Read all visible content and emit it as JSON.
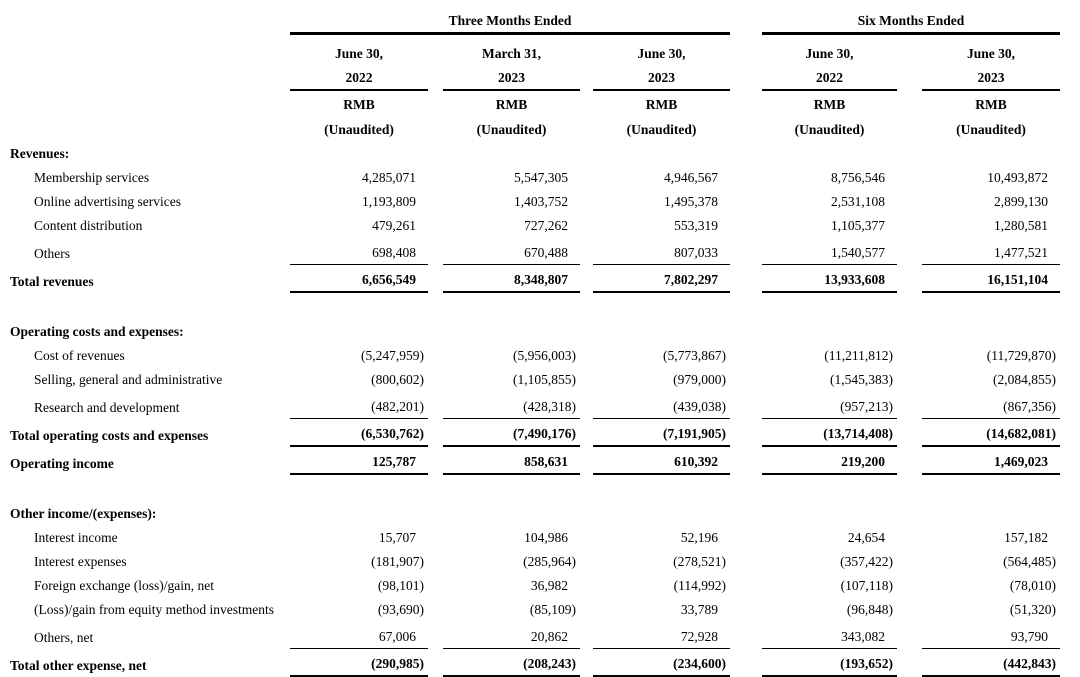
{
  "table": {
    "group_headers": [
      {
        "label": "Three Months Ended",
        "span": 3
      },
      {
        "label": "Six Months Ended",
        "span": 2
      }
    ],
    "columns": [
      {
        "date": "June 30,",
        "year": "2022",
        "unit": "RMB",
        "note": "(Unaudited)"
      },
      {
        "date": "March 31,",
        "year": "2023",
        "unit": "RMB",
        "note": "(Unaudited)"
      },
      {
        "date": "June 30,",
        "year": "2023",
        "unit": "RMB",
        "note": "(Unaudited)"
      },
      {
        "date": "June 30,",
        "year": "2022",
        "unit": "RMB",
        "note": "(Unaudited)"
      },
      {
        "date": "June 30,",
        "year": "2023",
        "unit": "RMB",
        "note": "(Unaudited)"
      }
    ],
    "rows": [
      {
        "type": "section",
        "label": "Revenues:"
      },
      {
        "type": "item",
        "label": "Membership services",
        "values": [
          "4,285,071",
          "5,547,305",
          "4,946,567",
          "8,756,546",
          "10,493,872"
        ]
      },
      {
        "type": "item",
        "label": "Online advertising services",
        "values": [
          "1,193,809",
          "1,403,752",
          "1,495,378",
          "2,531,108",
          "2,899,130"
        ]
      },
      {
        "type": "item",
        "label": "Content distribution",
        "values": [
          "479,261",
          "727,262",
          "553,319",
          "1,105,377",
          "1,280,581"
        ]
      },
      {
        "type": "item",
        "rule": true,
        "label": "Others",
        "values": [
          "698,408",
          "670,488",
          "807,033",
          "1,540,577",
          "1,477,521"
        ]
      },
      {
        "type": "total",
        "label": "Total revenues",
        "values": [
          "6,656,549",
          "8,348,807",
          "7,802,297",
          "13,933,608",
          "16,151,104"
        ]
      },
      {
        "type": "spacer"
      },
      {
        "type": "section",
        "label": "Operating costs and expenses:"
      },
      {
        "type": "item",
        "label": "Cost of revenues",
        "values": [
          "(5,247,959)",
          "(5,956,003)",
          "(5,773,867)",
          "(11,211,812)",
          "(11,729,870)"
        ]
      },
      {
        "type": "item",
        "label": "Selling, general and administrative",
        "values": [
          "(800,602)",
          "(1,105,855)",
          "(979,000)",
          "(1,545,383)",
          "(2,084,855)"
        ]
      },
      {
        "type": "item",
        "rule": true,
        "label": "Research and development",
        "values": [
          "(482,201)",
          "(428,318)",
          "(439,038)",
          "(957,213)",
          "(867,356)"
        ]
      },
      {
        "type": "total",
        "label": "Total operating costs and expenses",
        "values": [
          "(6,530,762)",
          "(7,490,176)",
          "(7,191,905)",
          "(13,714,408)",
          "(14,682,081)"
        ]
      },
      {
        "type": "total",
        "label": "Operating income",
        "values": [
          "125,787",
          "858,631",
          "610,392",
          "219,200",
          "1,469,023"
        ]
      },
      {
        "type": "spacer"
      },
      {
        "type": "section",
        "label": "Other income/(expenses):"
      },
      {
        "type": "item",
        "label": "Interest income",
        "values": [
          "15,707",
          "104,986",
          "52,196",
          "24,654",
          "157,182"
        ]
      },
      {
        "type": "item",
        "label": "Interest expenses",
        "values": [
          "(181,907)",
          "(285,964)",
          "(278,521)",
          "(357,422)",
          "(564,485)"
        ]
      },
      {
        "type": "item",
        "label": "Foreign exchange (loss)/gain, net",
        "values": [
          "(98,101)",
          "36,982",
          "(114,992)",
          "(107,118)",
          "(78,010)"
        ]
      },
      {
        "type": "item",
        "label": "(Loss)/gain from equity method investments",
        "values": [
          "(93,690)",
          "(85,109)",
          "33,789",
          "(96,848)",
          "(51,320)"
        ]
      },
      {
        "type": "item",
        "rule": true,
        "label": "Others, net",
        "values": [
          "67,006",
          "20,862",
          "72,928",
          "343,082",
          "93,790"
        ]
      },
      {
        "type": "total",
        "label": "Total other expense, net",
        "values": [
          "(290,985)",
          "(208,243)",
          "(234,600)",
          "(193,652)",
          "(442,843)"
        ]
      }
    ]
  }
}
